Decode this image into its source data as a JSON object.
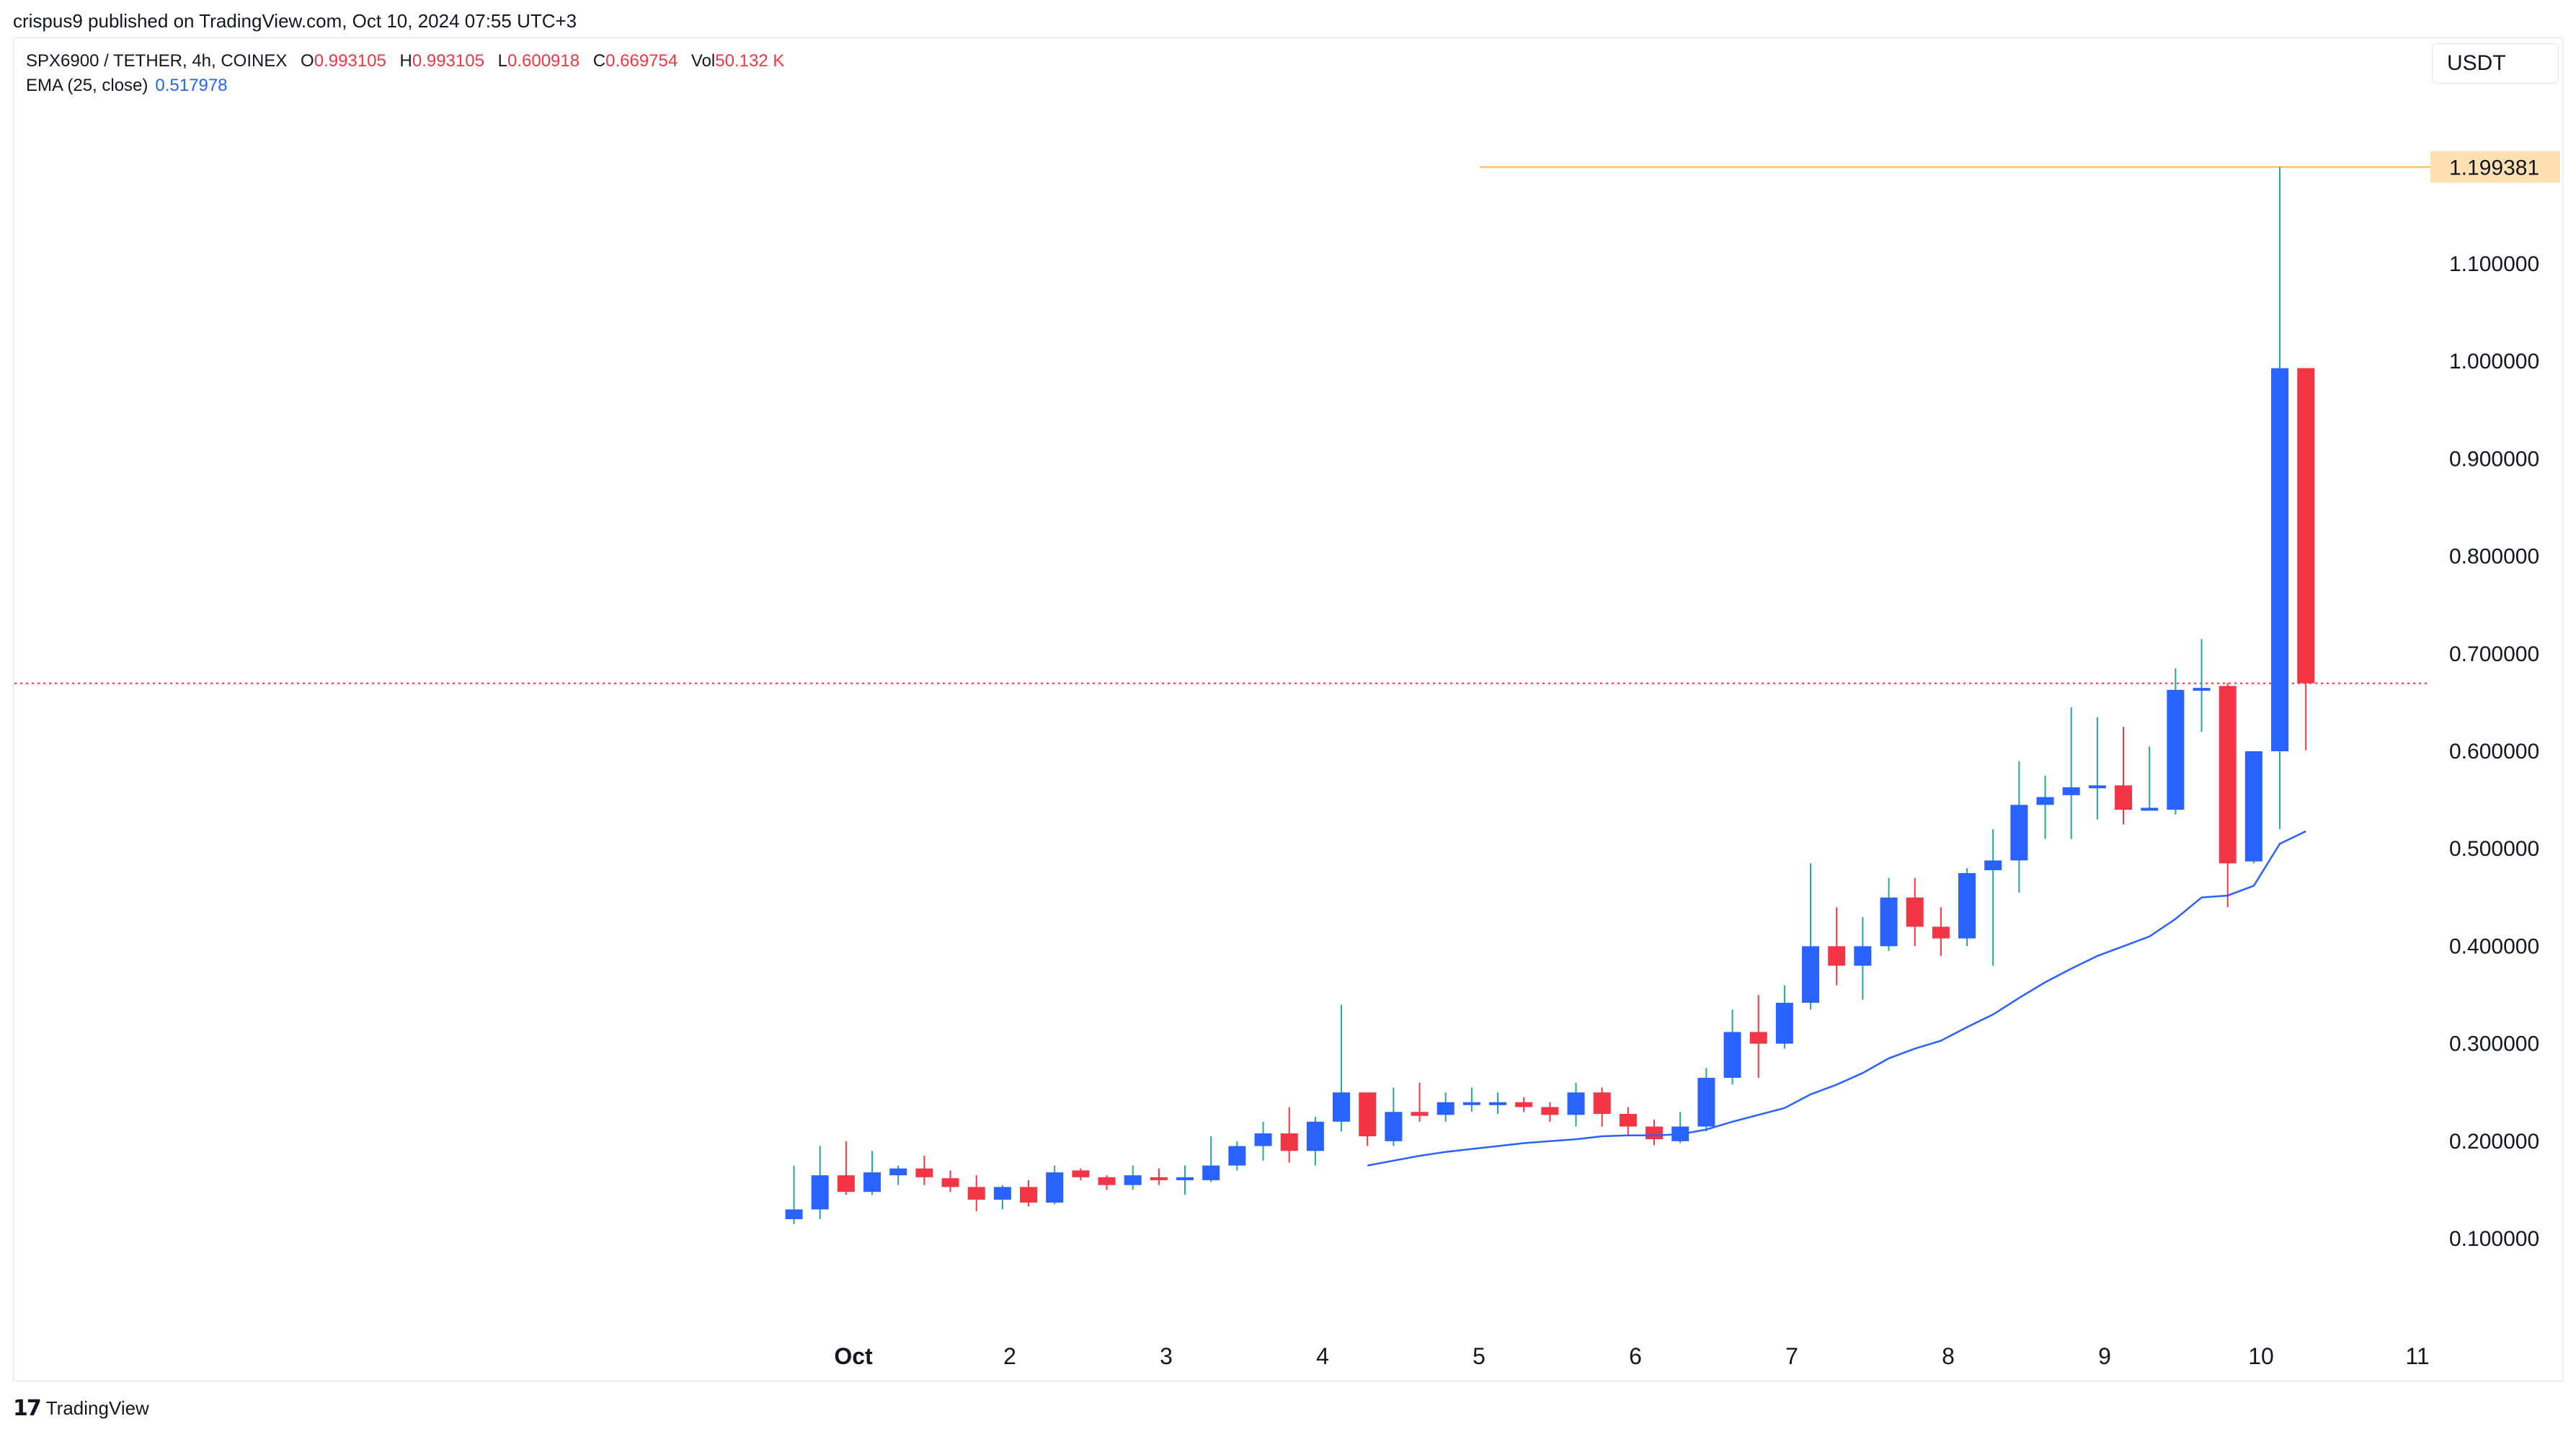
{
  "publish_line": "crispus9 published on TradingView.com, Oct 10, 2024 07:55 UTC+3",
  "legend": {
    "symbol": "SPX6900 / TETHER, 4h, COINEX",
    "o_label": "O",
    "o_value": "0.993105",
    "h_label": "H",
    "h_value": "0.993105",
    "l_label": "L",
    "l_value": "0.600918",
    "c_label": "C",
    "c_value": "0.669754",
    "vol_label": "Vol",
    "vol_value": "50.132 K",
    "ema_label": "EMA (25, close)",
    "ema_value": "0.517978"
  },
  "currency": "USDT",
  "brand": "TradingView",
  "colors": {
    "up": "#2962ff",
    "down": "#f23645",
    "wick_up": "#26a69a",
    "ema": "#2962ff",
    "high_line": "#ffb74d",
    "price_line": "#f23645"
  },
  "chart_data": {
    "type": "candlestick",
    "title": "SPX6900 / TETHER, 4h, COINEX",
    "ylim": [
      0.0,
      1.3
    ],
    "y_ticks": [
      "0.100000",
      "0.200000",
      "0.300000",
      "0.400000",
      "0.500000",
      "0.600000",
      "0.700000",
      "0.800000",
      "0.900000",
      "1.000000",
      "1.100000"
    ],
    "x_ticks": [
      {
        "label": "Oct",
        "day": 1
      },
      {
        "label": "2",
        "day": 2
      },
      {
        "label": "3",
        "day": 3
      },
      {
        "label": "4",
        "day": 4
      },
      {
        "label": "5",
        "day": 5
      },
      {
        "label": "6",
        "day": 6
      },
      {
        "label": "7",
        "day": 7
      },
      {
        "label": "8",
        "day": 8
      },
      {
        "label": "9",
        "day": 9
      },
      {
        "label": "10",
        "day": 10
      },
      {
        "label": "11",
        "day": 11
      }
    ],
    "high_marker": "1.199381",
    "last_price": 0.669754,
    "candles": [
      [
        0.12,
        0.13,
        0.115,
        0.175
      ],
      [
        0.13,
        0.165,
        0.12,
        0.195
      ],
      [
        0.165,
        0.148,
        0.145,
        0.2
      ],
      [
        0.148,
        0.168,
        0.145,
        0.19
      ],
      [
        0.165,
        0.172,
        0.155,
        0.175
      ],
      [
        0.172,
        0.163,
        0.155,
        0.185
      ],
      [
        0.162,
        0.153,
        0.148,
        0.17
      ],
      [
        0.153,
        0.14,
        0.128,
        0.165
      ],
      [
        0.14,
        0.153,
        0.13,
        0.155
      ],
      [
        0.153,
        0.137,
        0.133,
        0.16
      ],
      [
        0.137,
        0.168,
        0.135,
        0.175
      ],
      [
        0.17,
        0.163,
        0.16,
        0.172
      ],
      [
        0.163,
        0.155,
        0.15,
        0.165
      ],
      [
        0.155,
        0.165,
        0.15,
        0.175
      ],
      [
        0.163,
        0.16,
        0.155,
        0.172
      ],
      [
        0.16,
        0.163,
        0.145,
        0.175
      ],
      [
        0.16,
        0.175,
        0.158,
        0.205
      ],
      [
        0.175,
        0.195,
        0.17,
        0.2
      ],
      [
        0.195,
        0.208,
        0.18,
        0.22
      ],
      [
        0.208,
        0.19,
        0.178,
        0.235
      ],
      [
        0.19,
        0.22,
        0.175,
        0.225
      ],
      [
        0.22,
        0.25,
        0.21,
        0.34
      ],
      [
        0.25,
        0.205,
        0.195,
        0.25
      ],
      [
        0.2,
        0.23,
        0.195,
        0.255
      ],
      [
        0.23,
        0.226,
        0.22,
        0.26
      ],
      [
        0.227,
        0.24,
        0.22,
        0.25
      ],
      [
        0.238,
        0.24,
        0.23,
        0.255
      ],
      [
        0.237,
        0.24,
        0.228,
        0.25
      ],
      [
        0.24,
        0.235,
        0.23,
        0.245
      ],
      [
        0.235,
        0.227,
        0.22,
        0.24
      ],
      [
        0.227,
        0.25,
        0.215,
        0.26
      ],
      [
        0.25,
        0.228,
        0.215,
        0.255
      ],
      [
        0.228,
        0.215,
        0.205,
        0.235
      ],
      [
        0.215,
        0.202,
        0.196,
        0.222
      ],
      [
        0.2,
        0.215,
        0.198,
        0.23
      ],
      [
        0.215,
        0.265,
        0.21,
        0.275
      ],
      [
        0.265,
        0.312,
        0.258,
        0.335
      ],
      [
        0.312,
        0.3,
        0.265,
        0.35
      ],
      [
        0.3,
        0.342,
        0.295,
        0.36
      ],
      [
        0.342,
        0.4,
        0.335,
        0.485
      ],
      [
        0.4,
        0.38,
        0.36,
        0.44
      ],
      [
        0.38,
        0.4,
        0.345,
        0.43
      ],
      [
        0.4,
        0.45,
        0.395,
        0.47
      ],
      [
        0.45,
        0.42,
        0.4,
        0.47
      ],
      [
        0.42,
        0.408,
        0.39,
        0.44
      ],
      [
        0.408,
        0.475,
        0.4,
        0.48
      ],
      [
        0.478,
        0.488,
        0.38,
        0.52
      ],
      [
        0.488,
        0.545,
        0.455,
        0.59
      ],
      [
        0.545,
        0.553,
        0.51,
        0.575
      ],
      [
        0.555,
        0.563,
        0.51,
        0.645
      ],
      [
        0.563,
        0.565,
        0.53,
        0.635
      ],
      [
        0.565,
        0.54,
        0.525,
        0.625
      ],
      [
        0.54,
        0.542,
        0.54,
        0.605
      ],
      [
        0.54,
        0.663,
        0.535,
        0.685
      ],
      [
        0.663,
        0.665,
        0.62,
        0.715
      ],
      [
        0.667,
        0.485,
        0.44,
        0.67
      ],
      [
        0.487,
        0.6,
        0.485,
        0.6
      ],
      [
        0.6,
        0.993,
        0.52,
        1.199381
      ],
      [
        0.993105,
        0.669754,
        0.600918,
        0.993105
      ]
    ],
    "ema": [
      [
        22,
        0.175
      ],
      [
        23,
        0.18
      ],
      [
        24,
        0.185
      ],
      [
        25,
        0.189
      ],
      [
        26,
        0.192
      ],
      [
        27,
        0.195
      ],
      [
        28,
        0.198
      ],
      [
        29,
        0.2
      ],
      [
        30,
        0.202
      ],
      [
        31,
        0.205
      ],
      [
        32,
        0.206
      ],
      [
        33,
        0.206
      ],
      [
        34,
        0.207
      ],
      [
        35,
        0.212
      ],
      [
        36,
        0.22
      ],
      [
        37,
        0.227
      ],
      [
        38,
        0.234
      ],
      [
        39,
        0.248
      ],
      [
        40,
        0.258
      ],
      [
        41,
        0.27
      ],
      [
        42,
        0.285
      ],
      [
        43,
        0.295
      ],
      [
        44,
        0.303
      ],
      [
        45,
        0.317
      ],
      [
        46,
        0.33
      ],
      [
        47,
        0.347
      ],
      [
        48,
        0.363
      ],
      [
        49,
        0.377
      ],
      [
        50,
        0.39
      ],
      [
        51,
        0.4
      ],
      [
        52,
        0.41
      ],
      [
        53,
        0.428
      ],
      [
        54,
        0.45
      ],
      [
        55,
        0.452
      ],
      [
        56,
        0.462
      ],
      [
        57,
        0.505
      ],
      [
        58,
        0.517978
      ]
    ]
  }
}
